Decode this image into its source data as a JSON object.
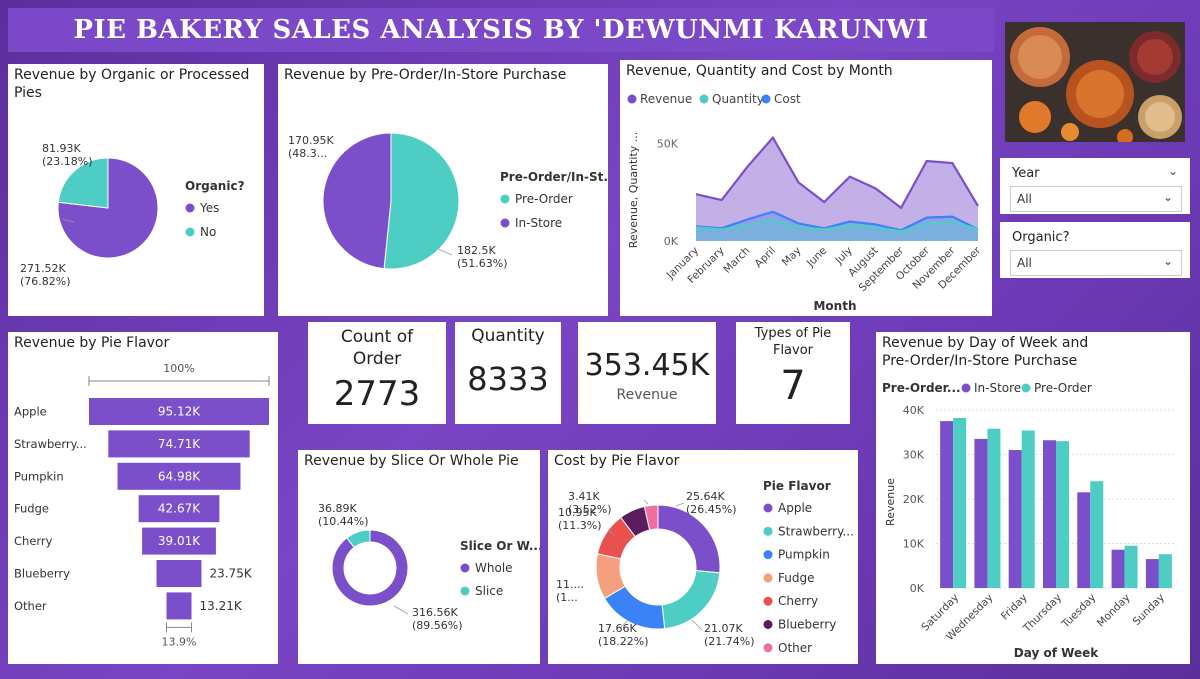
{
  "title": "PIE BAKERY SALES ANALYSIS BY 'DEWUNMI KARUNWI",
  "colors": {
    "purple": "#7a4fc9",
    "teal": "#4ecdc4",
    "blue": "#3b82f6",
    "salmon": "#f4a07e",
    "red": "#e8514f",
    "dark": "#5a1e5e",
    "pink": "#f06fa0"
  },
  "slicers": [
    {
      "label": "Year",
      "value": "All"
    },
    {
      "label": "Organic?",
      "value": "All"
    }
  ],
  "cards": {
    "orders": {
      "label": "Count of Order",
      "value": "2773"
    },
    "quantity": {
      "label": "Quantity",
      "value": "8333"
    },
    "revenue": {
      "label": "Revenue",
      "value": "353.45K"
    },
    "flavors": {
      "label": "Types of Pie Flavor",
      "value": "7"
    }
  },
  "chart_data": [
    {
      "id": "organic",
      "type": "pie",
      "title": "Revenue by Organic or Processed Pies",
      "legend_title": "Organic?",
      "slices": [
        {
          "name": "Yes",
          "value": 271520,
          "label": "271.52K",
          "pct": "(76.82%)",
          "color": "#7a4fc9"
        },
        {
          "name": "No",
          "value": 81930,
          "label": "81.93K",
          "pct": "(23.18%)",
          "color": "#4ecdc4"
        }
      ]
    },
    {
      "id": "purchase",
      "type": "pie",
      "title": "Revenue by Pre-Order/In-Store Purchase",
      "legend_title": "Pre-Order/In-St...",
      "slices": [
        {
          "name": "Pre-Order",
          "value": 182500,
          "label": "182.5K",
          "pct": "(51.63%)",
          "color": "#4ecdc4"
        },
        {
          "name": "In-Store",
          "value": 170950,
          "label": "170.95K",
          "pct": "(48.3...",
          "color": "#7a4fc9"
        }
      ]
    },
    {
      "id": "monthly",
      "type": "area",
      "title": "Revenue, Quantity and Cost by Month",
      "xlabel": "Month",
      "ylabel": "Revenue, Quantity ...",
      "categories": [
        "January",
        "February",
        "March",
        "April",
        "May",
        "June",
        "July",
        "August",
        "September",
        "October",
        "November",
        "December"
      ],
      "yticks": [
        "0K",
        "50K"
      ],
      "ylim": [
        0,
        60000
      ],
      "series": [
        {
          "name": "Revenue",
          "color": "#7a4fc9",
          "values": [
            24000,
            21000,
            38000,
            53000,
            30000,
            20000,
            33000,
            27000,
            17000,
            41000,
            40000,
            18000
          ]
        },
        {
          "name": "Quantity",
          "color": "#4ecdc4",
          "values": [
            7000,
            6000,
            8000,
            11000,
            7000,
            6000,
            8000,
            7000,
            5000,
            9000,
            10000,
            6000
          ]
        },
        {
          "name": "Cost",
          "color": "#3b82f6",
          "values": [
            7500,
            6500,
            11000,
            15000,
            9000,
            6500,
            10000,
            8500,
            5500,
            12000,
            12500,
            6000
          ]
        }
      ]
    },
    {
      "id": "flavor_funnel",
      "type": "bar",
      "title": "Revenue by Pie Flavor",
      "top_label": "100%",
      "bottom_label": "13.9%",
      "categories": [
        "Apple",
        "Strawberry...",
        "Pumpkin",
        "Fudge",
        "Cherry",
        "Blueberry",
        "Other"
      ],
      "values": [
        95120,
        74710,
        64980,
        42670,
        39010,
        23750,
        13210
      ],
      "labels": [
        "95.12K",
        "74.71K",
        "64.98K",
        "42.67K",
        "39.01K",
        "23.75K",
        "13.21K"
      ]
    },
    {
      "id": "slice_whole",
      "type": "pie",
      "title": "Revenue by Slice Or Whole Pie",
      "legend_title": "Slice Or W...",
      "slices": [
        {
          "name": "Whole",
          "value": 316560,
          "label": "316.56K",
          "pct": "(89.56%)",
          "color": "#7a4fc9"
        },
        {
          "name": "Slice",
          "value": 36890,
          "label": "36.89K",
          "pct": "(10.44%)",
          "color": "#4ecdc4"
        }
      ]
    },
    {
      "id": "cost_flavor",
      "type": "pie",
      "title": "Cost by Pie Flavor",
      "legend_title": "Pie Flavor",
      "slices": [
        {
          "name": "Apple",
          "value": 25640,
          "label": "25.64K",
          "pct": "(26.45%)",
          "color": "#7a4fc9"
        },
        {
          "name": "Strawberry...",
          "value": 21070,
          "label": "21.07K",
          "pct": "(21.74%)",
          "color": "#4ecdc4"
        },
        {
          "name": "Pumpkin",
          "value": 17660,
          "label": "17.66K",
          "pct": "(18.22%)",
          "color": "#3b82f6"
        },
        {
          "name": "Fudge",
          "value": 11500,
          "label": "11....",
          "pct": "(1...",
          "color": "#f4a07e"
        },
        {
          "name": "Cherry",
          "value": 10950,
          "label": "10.95K",
          "pct": "(11.3%)",
          "color": "#e8514f"
        },
        {
          "name": "Blueberry",
          "value": 6500,
          "label": "",
          "pct": "",
          "color": "#5a1e5e"
        },
        {
          "name": "Other",
          "value": 3410,
          "label": "3.41K",
          "pct": "(3.52%)",
          "color": "#f06fa0"
        }
      ]
    },
    {
      "id": "day_of_week",
      "type": "bar",
      "title": "Revenue by Day of Week and Pre-Order/In-Store Purchase",
      "legend_title": "Pre-Order...",
      "xlabel": "Day of Week",
      "ylabel": "Revenue",
      "categories": [
        "Saturday",
        "Wednesday",
        "Friday",
        "Thursday",
        "Tuesday",
        "Monday",
        "Sunday"
      ],
      "yticks": [
        "0K",
        "10K",
        "20K",
        "30K",
        "40K"
      ],
      "ylim": [
        0,
        40000
      ],
      "series": [
        {
          "name": "In-Store",
          "color": "#7a4fc9",
          "values": [
            37500,
            33500,
            31000,
            33200,
            21500,
            8600,
            6500
          ]
        },
        {
          "name": "Pre-Order",
          "color": "#4ecdc4",
          "values": [
            38200,
            35800,
            35400,
            33000,
            24000,
            9500,
            7600
          ]
        }
      ]
    }
  ]
}
